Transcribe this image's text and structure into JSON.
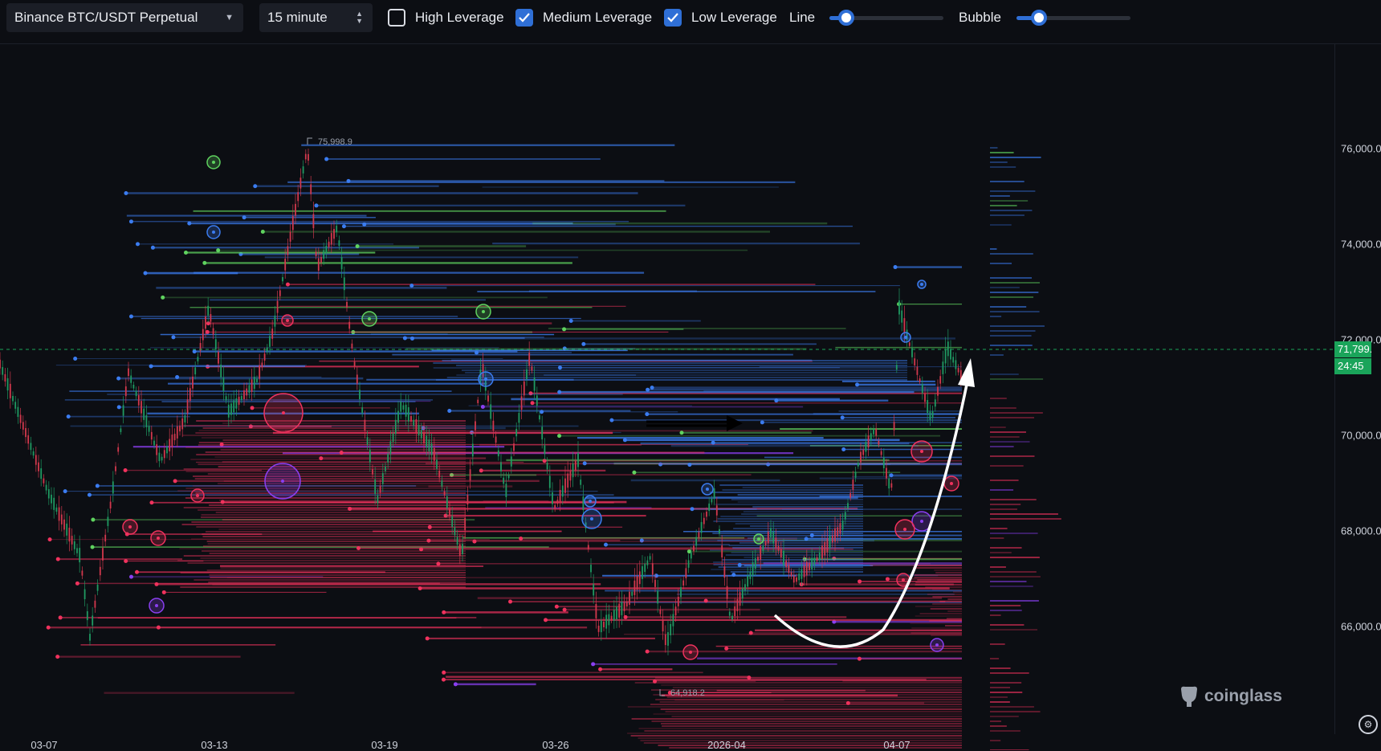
{
  "toolbar": {
    "market_value": "Binance BTC/USDT Perpetual",
    "interval_value": "15 minute",
    "high_leverage": {
      "label": "High Leverage",
      "checked": false
    },
    "medium_leverage": {
      "label": "Medium Leverage",
      "checked": true
    },
    "low_leverage": {
      "label": "Low Leverage",
      "checked": true
    },
    "line_label": "Line",
    "line_level": 0.15,
    "bubble_label": "Bubble",
    "bubble_level": 0.2
  },
  "chart": {
    "high_marker": "75,998.9",
    "low_marker": "64,918.2",
    "current_price": "71,799.8",
    "countdown": "24:45",
    "y_ticks": [
      "76,000.0",
      "74,000.0",
      "72,000.0",
      "70,000.0",
      "68,000.0",
      "66,000.0"
    ],
    "x_ticks": [
      "03-07",
      "03-13",
      "03-19",
      "03-26",
      "2026-04",
      "04-07"
    ],
    "colors": {
      "background": "#0c0e13",
      "blue": "#3b7cf0",
      "green": "#5fd35f",
      "red": "#f0325d",
      "purple": "#8a3ff0",
      "price_line": "#1aa45a"
    }
  },
  "watermark": {
    "text": "coinglass"
  }
}
